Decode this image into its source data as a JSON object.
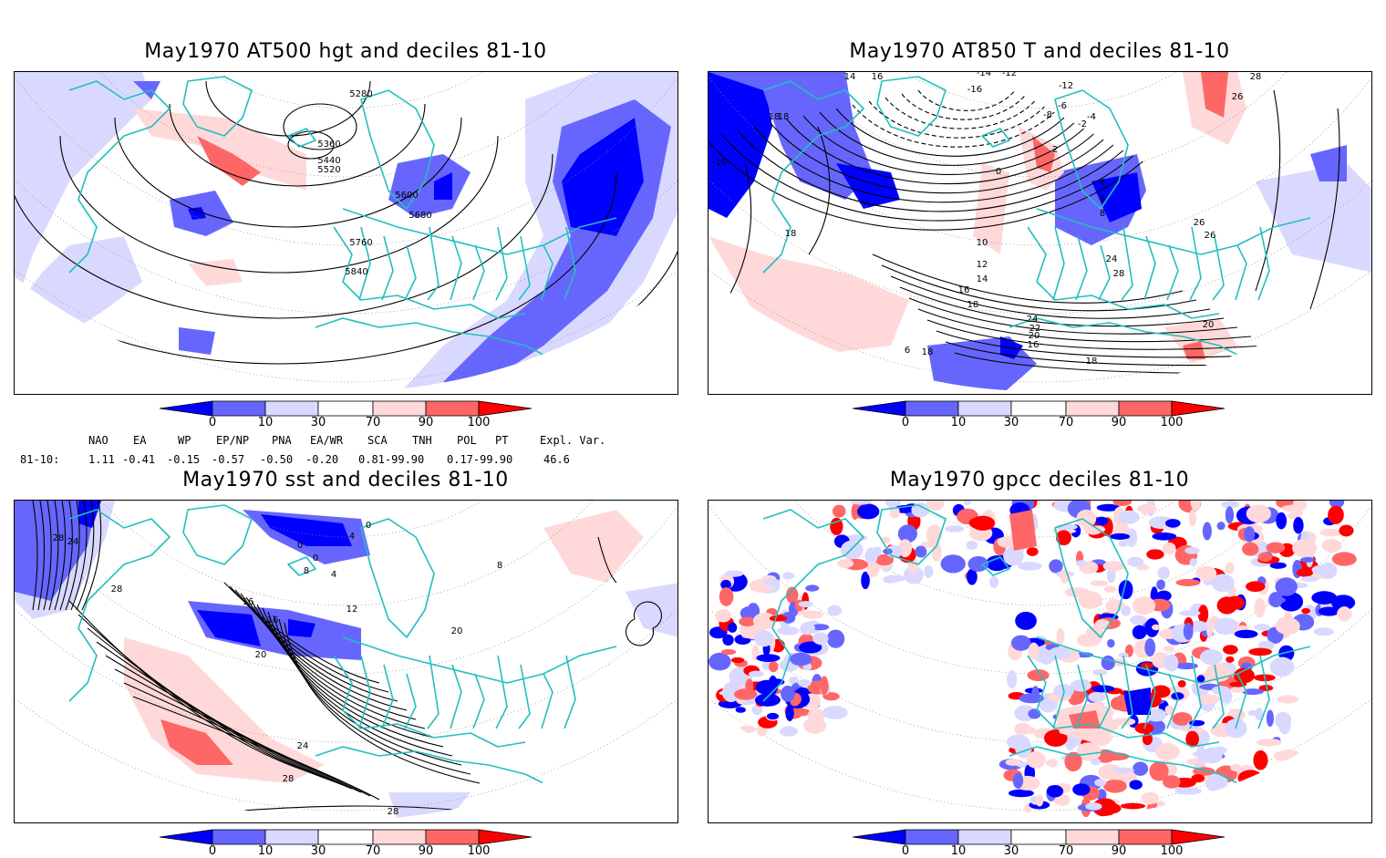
{
  "panels": [
    {
      "id": "hgt",
      "title": "May1970 AT500 hgt and deciles 81-10",
      "contour_labels": [
        "5280",
        "5360",
        "5440",
        "5520",
        "5600",
        "5680",
        "5760",
        "5840"
      ]
    },
    {
      "id": "t850",
      "title": "May1970 AT850 T and deciles 81-10",
      "contour_labels": [
        "14",
        "16",
        "-14",
        "-12",
        "-16",
        "-12",
        "28",
        "18",
        "26",
        "-6",
        "-8",
        "-4",
        "-2",
        "2",
        "0",
        "4",
        "6",
        "8",
        "10",
        "12",
        "14",
        "16",
        "18",
        "24",
        "28",
        "26",
        "26",
        "24",
        "22",
        "20",
        "16",
        "18",
        "18",
        "-16",
        "18",
        "18",
        "20",
        "6"
      ]
    },
    {
      "id": "sst",
      "title": "May1970 sst and deciles 81-10",
      "contour_labels": [
        "28",
        "24",
        "28",
        "0",
        "0",
        "4",
        "0",
        "8",
        "4",
        "12",
        "16",
        "16",
        "20",
        "20",
        "8",
        "24",
        "28",
        "28"
      ]
    },
    {
      "id": "gpcc",
      "title": "May1970 gpcc deciles 81-10",
      "contour_labels": []
    }
  ],
  "colorbar": {
    "colors": [
      "#0000ff",
      "#6666ff",
      "#d9d9ff",
      "#ffffff",
      "#ffd9d9",
      "#ff6666",
      "#ff0000"
    ],
    "tick_labels": [
      "0",
      "10",
      "30",
      "70",
      "90",
      "100"
    ]
  },
  "indices": {
    "header": [
      "NAO",
      "EA",
      "WP",
      "EP/NP",
      "PNA",
      "EA/WR",
      "SCA",
      "TNH",
      "POL",
      "PT",
      "Expl. Var."
    ],
    "row_label": "81-10:",
    "values": [
      "1.11",
      "-0.41",
      "-0.15",
      "-0.57",
      "-0.50",
      "-0.20",
      "0.81-99.90",
      "0.17-99.90",
      "46.6"
    ]
  },
  "colors": {
    "coast": "#22bfbf",
    "contour": "#000000",
    "grid": "#888888"
  }
}
